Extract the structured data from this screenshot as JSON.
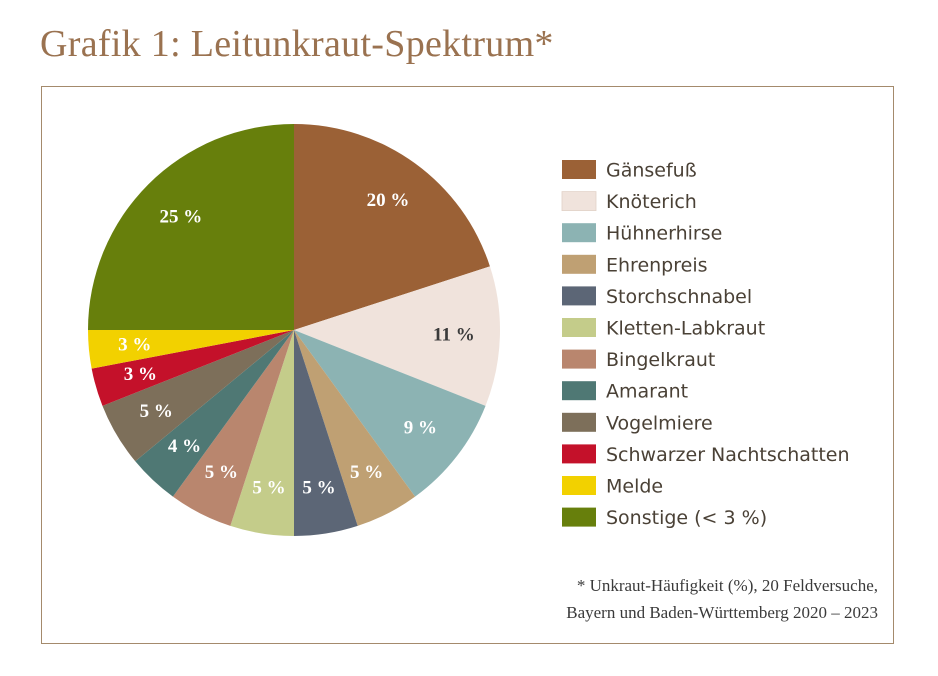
{
  "title": "Grafik 1: Leitunkraut-Spektrum*",
  "footnote": {
    "line1": "* Unkraut-Häufigkeit (%), 20 Feldversuche,",
    "line2": "Bayern und Baden-Württemberg 2020 – 2023"
  },
  "chart_data": {
    "type": "pie",
    "unit": "%",
    "legend_position": "right",
    "slices": [
      {
        "label": "Gänsefuß",
        "value": 20,
        "value_label": "20 %",
        "color": "#9b6136",
        "label_color": "#ffffff"
      },
      {
        "label": "Knöterich",
        "value": 11,
        "value_label": "11 %",
        "color": "#f0e3dc",
        "label_color": "#3a3a3a"
      },
      {
        "label": "Hühnerhirse",
        "value": 9,
        "value_label": "9 %",
        "color": "#8cb3b3",
        "label_color": "#ffffff"
      },
      {
        "label": "Ehrenpreis",
        "value": 5,
        "value_label": "5 %",
        "color": "#bfa073",
        "label_color": "#ffffff"
      },
      {
        "label": "Storchschnabel",
        "value": 5,
        "value_label": "5 %",
        "color": "#5c6676",
        "label_color": "#ffffff"
      },
      {
        "label": "Kletten-Labkraut",
        "value": 5,
        "value_label": "5 %",
        "color": "#c4cc8a",
        "label_color": "#ffffff"
      },
      {
        "label": "Bingelkraut",
        "value": 5,
        "value_label": "5 %",
        "color": "#b9866e",
        "label_color": "#ffffff"
      },
      {
        "label": "Amarant",
        "value": 4,
        "value_label": "4 %",
        "color": "#4f7874",
        "label_color": "#ffffff"
      },
      {
        "label": "Vogelmiere",
        "value": 5,
        "value_label": "5 %",
        "color": "#7d6f5a",
        "label_color": "#ffffff"
      },
      {
        "label": "Schwarzer Nachtschatten",
        "value": 3,
        "value_label": "3 %",
        "color": "#c4112a",
        "label_color": "#ffffff"
      },
      {
        "label": "Melde",
        "value": 3,
        "value_label": "3 %",
        "color": "#f2d100",
        "label_color": "#ffffff"
      },
      {
        "label": "Sonstige (< 3 %)",
        "value": 25,
        "value_label": "25 %",
        "color": "#677f0c",
        "label_color": "#ffffff"
      }
    ]
  }
}
